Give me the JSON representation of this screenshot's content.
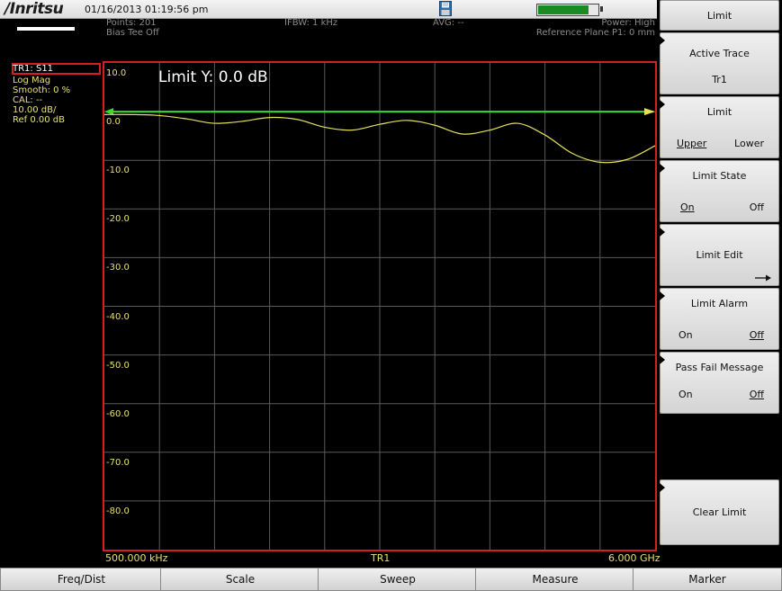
{
  "status_bar": {
    "brand": "/Inritsu",
    "datetime": "01/16/2013 01:19:56 pm",
    "battery_level": 0.85
  },
  "header": {
    "points": "Points: 201",
    "bias_tee": "Bias Tee Off",
    "ifbw": "IFBW: 1 kHz",
    "avg": "AVG: --",
    "power": "Power: High",
    "reference_plane": "Reference Plane P1: 0 mm"
  },
  "trace_info": {
    "trace": "TR1: S11",
    "format": "Log Mag",
    "smooth": "Smooth: 0 %",
    "cal": "CAL: --",
    "scale": "10.00 dB/",
    "ref": "Ref 0.00 dB"
  },
  "graph": {
    "limit_readout": "Limit Y: 0.0 dB",
    "y_labels": [
      "10.0",
      "0.0",
      "-10.0",
      "-20.0",
      "-30.0",
      "-40.0",
      "-50.0",
      "-60.0",
      "-70.0",
      "-80.0"
    ],
    "start_freq": "500.000 kHz",
    "trace_label": "TR1",
    "stop_freq": "6.000 GHz",
    "trace_color": "#e6e05a",
    "limit_color": "#33dd33",
    "grid_color": "#5a5a5a",
    "frame_color": "#d42020"
  },
  "chart_data": {
    "type": "line",
    "xlim": [
      0.0005,
      6.0
    ],
    "ylim": [
      -90,
      10
    ],
    "xlabel": "",
    "ylabel": "",
    "limit_y": 0.0,
    "series": [
      {
        "x": [
          0.0005,
          0.3,
          0.6,
          0.9,
          1.2,
          1.5,
          1.8,
          2.1,
          2.4,
          2.7,
          3.0,
          3.3,
          3.6,
          3.9,
          4.2,
          4.5,
          4.8,
          5.1,
          5.4,
          5.7,
          6.0
        ],
        "y": [
          -0.6,
          -0.6,
          -0.8,
          -1.5,
          -2.4,
          -2.0,
          -1.2,
          -1.6,
          -3.2,
          -3.8,
          -2.6,
          -1.8,
          -2.8,
          -4.6,
          -3.8,
          -2.4,
          -4.8,
          -8.6,
          -10.4,
          -9.8,
          -7.0
        ]
      }
    ]
  },
  "soft_keys": {
    "title": "Limit",
    "active_trace": {
      "label": "Active Trace",
      "value": "Tr1"
    },
    "limit": {
      "label": "Limit",
      "opt_upper": "Upper",
      "opt_lower": "Lower"
    },
    "limit_state": {
      "label": "Limit State",
      "opt_on": "On",
      "opt_off": "Off"
    },
    "limit_edit": {
      "label": "Limit Edit"
    },
    "limit_alarm": {
      "label": "Limit Alarm",
      "opt_on": "On",
      "opt_off": "Off"
    },
    "pass_fail": {
      "label": "Pass Fail Message",
      "opt_on": "On",
      "opt_off": "Off"
    },
    "clear_limit": {
      "label": "Clear Limit"
    }
  },
  "bottom_menu": [
    "Freq/Dist",
    "Scale",
    "Sweep",
    "Measure",
    "Marker"
  ]
}
